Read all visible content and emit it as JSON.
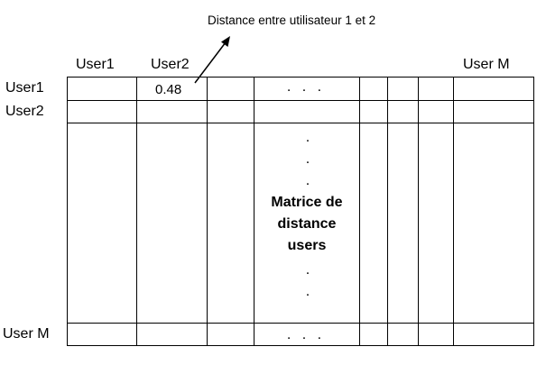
{
  "annotation": "Distance entre utilisateur 1 et 2",
  "column_headers": {
    "first": "User1",
    "second": "User2",
    "last": "User M"
  },
  "row_headers": {
    "first": "User1",
    "second": "User2",
    "last": "User M"
  },
  "cell_value": "0.48",
  "ellipsis": ". . .",
  "vertical_dot": ".",
  "center_label": [
    "Matrice de",
    "distance",
    "users"
  ]
}
